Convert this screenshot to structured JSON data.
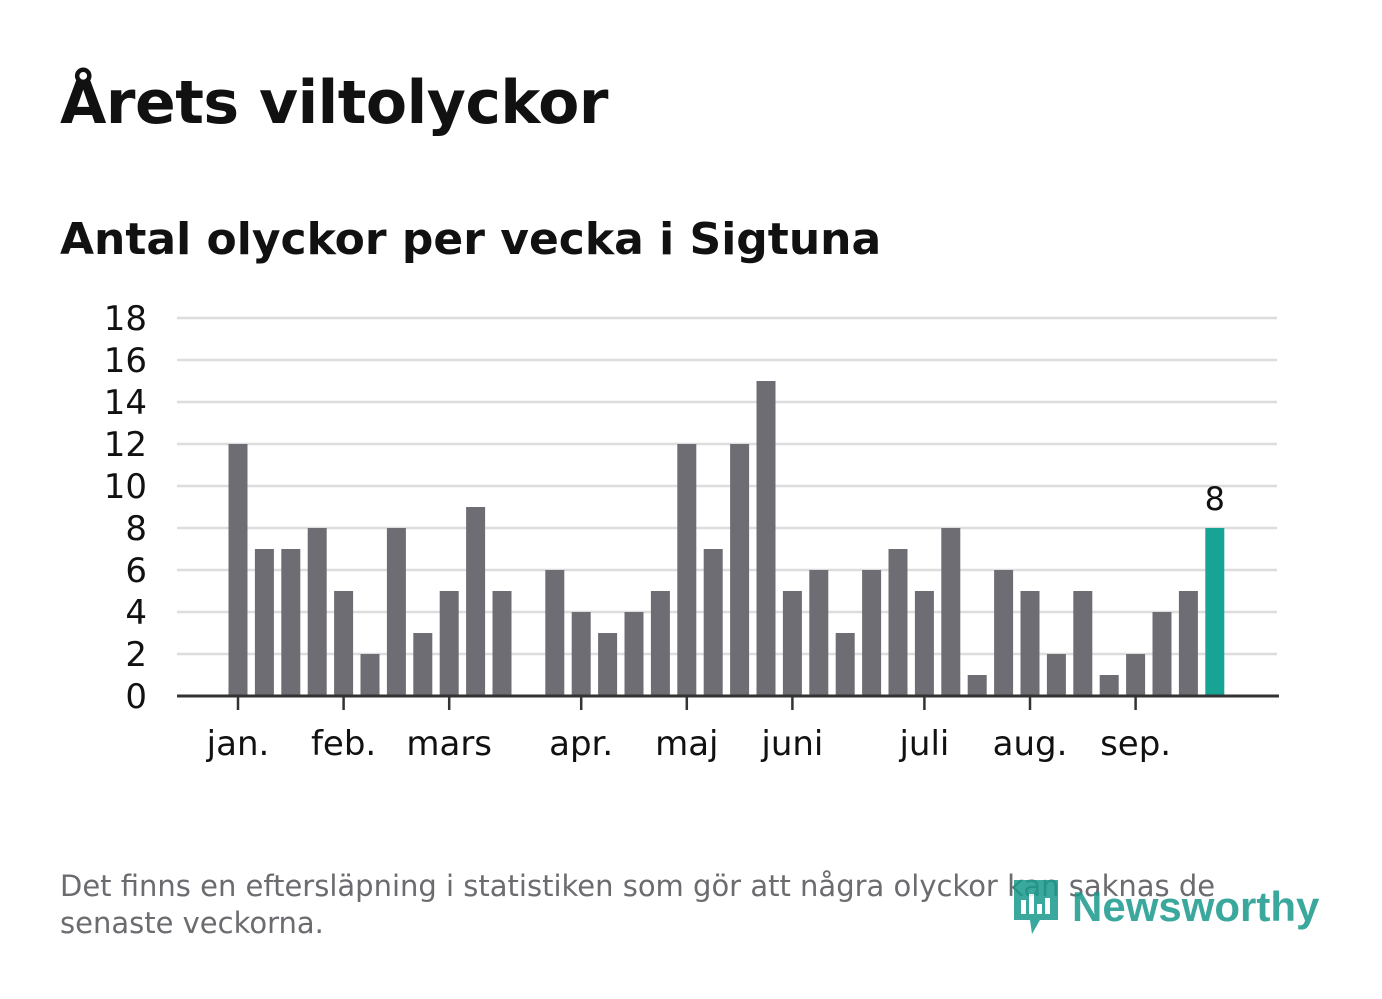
{
  "header": {
    "title": "Årets viltolyckor",
    "subtitle": "Antal olyckor per vecka i Sigtuna"
  },
  "footer": {
    "note": "Det finns en eftersläpning i statistiken som gör att några olyckor kan saknas de senaste veckorna.",
    "brand": "Newsworthy"
  },
  "colors": {
    "bar": "#6e6d73",
    "highlight": "#17a495",
    "grid": "#dddddd",
    "axis": "#333333",
    "text": "#111111",
    "muted": "#6b6b70"
  },
  "chart_data": {
    "type": "bar",
    "title": "Antal olyckor per vecka i Sigtuna",
    "xlabel": "",
    "ylabel": "",
    "ylim": [
      0,
      18
    ],
    "yticks": [
      0,
      2,
      4,
      6,
      8,
      10,
      12,
      14,
      16,
      18
    ],
    "grid": true,
    "weeks": [
      1,
      2,
      3,
      4,
      5,
      6,
      7,
      8,
      9,
      10,
      11,
      12,
      13,
      14,
      15,
      16,
      17,
      18,
      19,
      20,
      21,
      22,
      23,
      24,
      25,
      26,
      27,
      28,
      29,
      30,
      31,
      32,
      33,
      34,
      35,
      36,
      37,
      38
    ],
    "values": [
      12,
      7,
      7,
      8,
      5,
      2,
      8,
      3,
      5,
      9,
      5,
      0,
      6,
      4,
      3,
      4,
      5,
      12,
      7,
      12,
      15,
      5,
      6,
      3,
      6,
      7,
      5,
      8,
      1,
      6,
      5,
      2,
      5,
      1,
      2,
      4,
      5,
      8
    ],
    "highlight_index": 37,
    "highlight_label": "8",
    "month_ticks": [
      {
        "label": "jan.",
        "week": 1.0
      },
      {
        "label": "feb.",
        "week": 5.0
      },
      {
        "label": "mars",
        "week": 9.0
      },
      {
        "label": "apr.",
        "week": 14.0
      },
      {
        "label": "maj",
        "week": 18.0
      },
      {
        "label": "juni",
        "week": 22.0
      },
      {
        "label": "juli",
        "week": 27.0
      },
      {
        "label": "aug.",
        "week": 31.0
      },
      {
        "label": "sep.",
        "week": 35.0
      }
    ]
  }
}
